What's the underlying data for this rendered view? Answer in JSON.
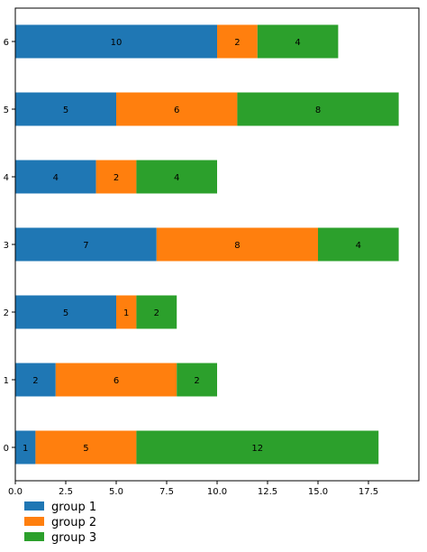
{
  "chart_data": {
    "type": "bar",
    "orientation": "horizontal",
    "stacked": true,
    "categories": [
      "0",
      "1",
      "2",
      "3",
      "4",
      "5",
      "6"
    ],
    "series": [
      {
        "name": "group 1",
        "color": "#1f77b4",
        "values": [
          1,
          2,
          5,
          7,
          4,
          5,
          10
        ]
      },
      {
        "name": "group 2",
        "color": "#ff7f0e",
        "values": [
          5,
          6,
          1,
          8,
          2,
          6,
          2
        ]
      },
      {
        "name": "group 3",
        "color": "#2ca02c",
        "values": [
          12,
          2,
          2,
          4,
          4,
          8,
          4
        ]
      }
    ],
    "xticks": [
      "0.0",
      "2.5",
      "5.0",
      "7.5",
      "10.0",
      "12.5",
      "15.0",
      "17.5"
    ],
    "xlim": [
      0,
      20
    ],
    "title": "",
    "xlabel": "",
    "ylabel": "",
    "grid": false,
    "legend_position": "bottom-left"
  }
}
